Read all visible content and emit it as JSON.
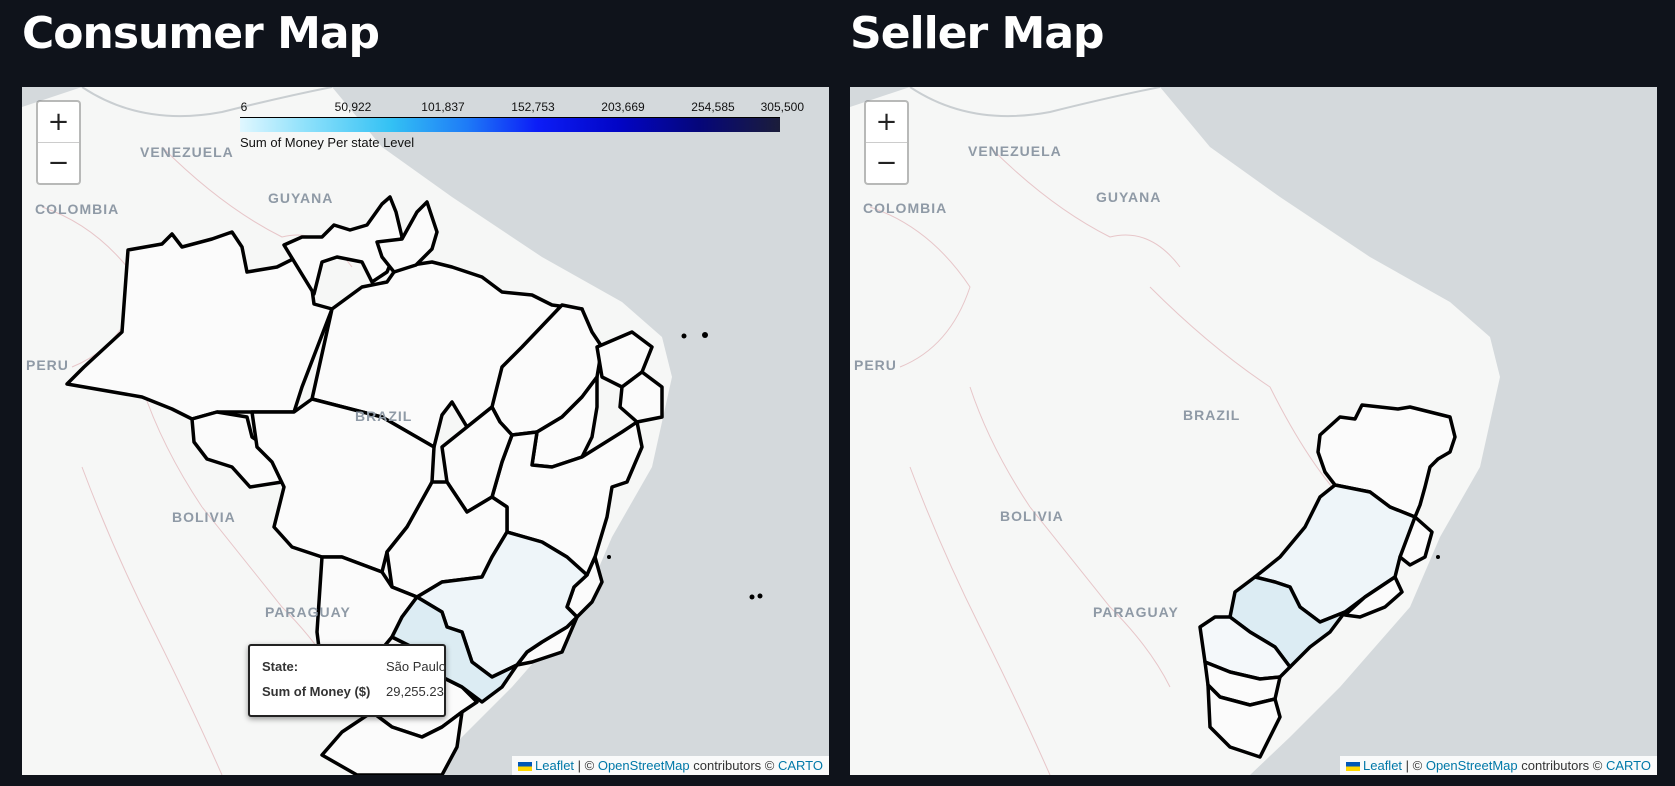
{
  "panels": [
    {
      "title": "Consumer Map",
      "zoom": {
        "in": "+",
        "out": "−"
      },
      "legend": {
        "ticks": [
          "6",
          "50,922",
          "101,837",
          "152,753",
          "203,669",
          "254,585",
          "305,500"
        ],
        "caption": "Sum of Money Per state Level"
      },
      "country_labels": [
        "VENEZUELA",
        "GUYANA",
        "COLOMBIA",
        "PERU",
        "BRAZIL",
        "BOLIVIA",
        "PARAGUAY"
      ],
      "tooltip": {
        "state_key": "State:",
        "state_value": "São Paulo",
        "money_key": "Sum of Money ($)",
        "money_value": "29,255.23"
      },
      "attribution": {
        "leaflet": "Leaflet",
        "sep1": " | © ",
        "osm": "OpenStreetMap",
        "mid": " contributors © ",
        "carto": "CARTO"
      }
    },
    {
      "title": "Seller Map",
      "zoom": {
        "in": "+",
        "out": "−"
      },
      "country_labels": [
        "VENEZUELA",
        "GUYANA",
        "COLOMBIA",
        "PERU",
        "BRAZIL",
        "BOLIVIA",
        "PARAGUAY"
      ],
      "attribution": {
        "leaflet": "Leaflet",
        "sep1": " | © ",
        "osm": "OpenStreetMap",
        "mid": " contributors © ",
        "carto": "CARTO"
      }
    }
  ],
  "colors": {
    "ocean": "#d4d9dc",
    "land": "#f7f8f7",
    "state_fill": "#fbfbfb",
    "highlight_light": "#eef5f9",
    "highlight_sp": "#dcecf3",
    "border": "#000000"
  }
}
